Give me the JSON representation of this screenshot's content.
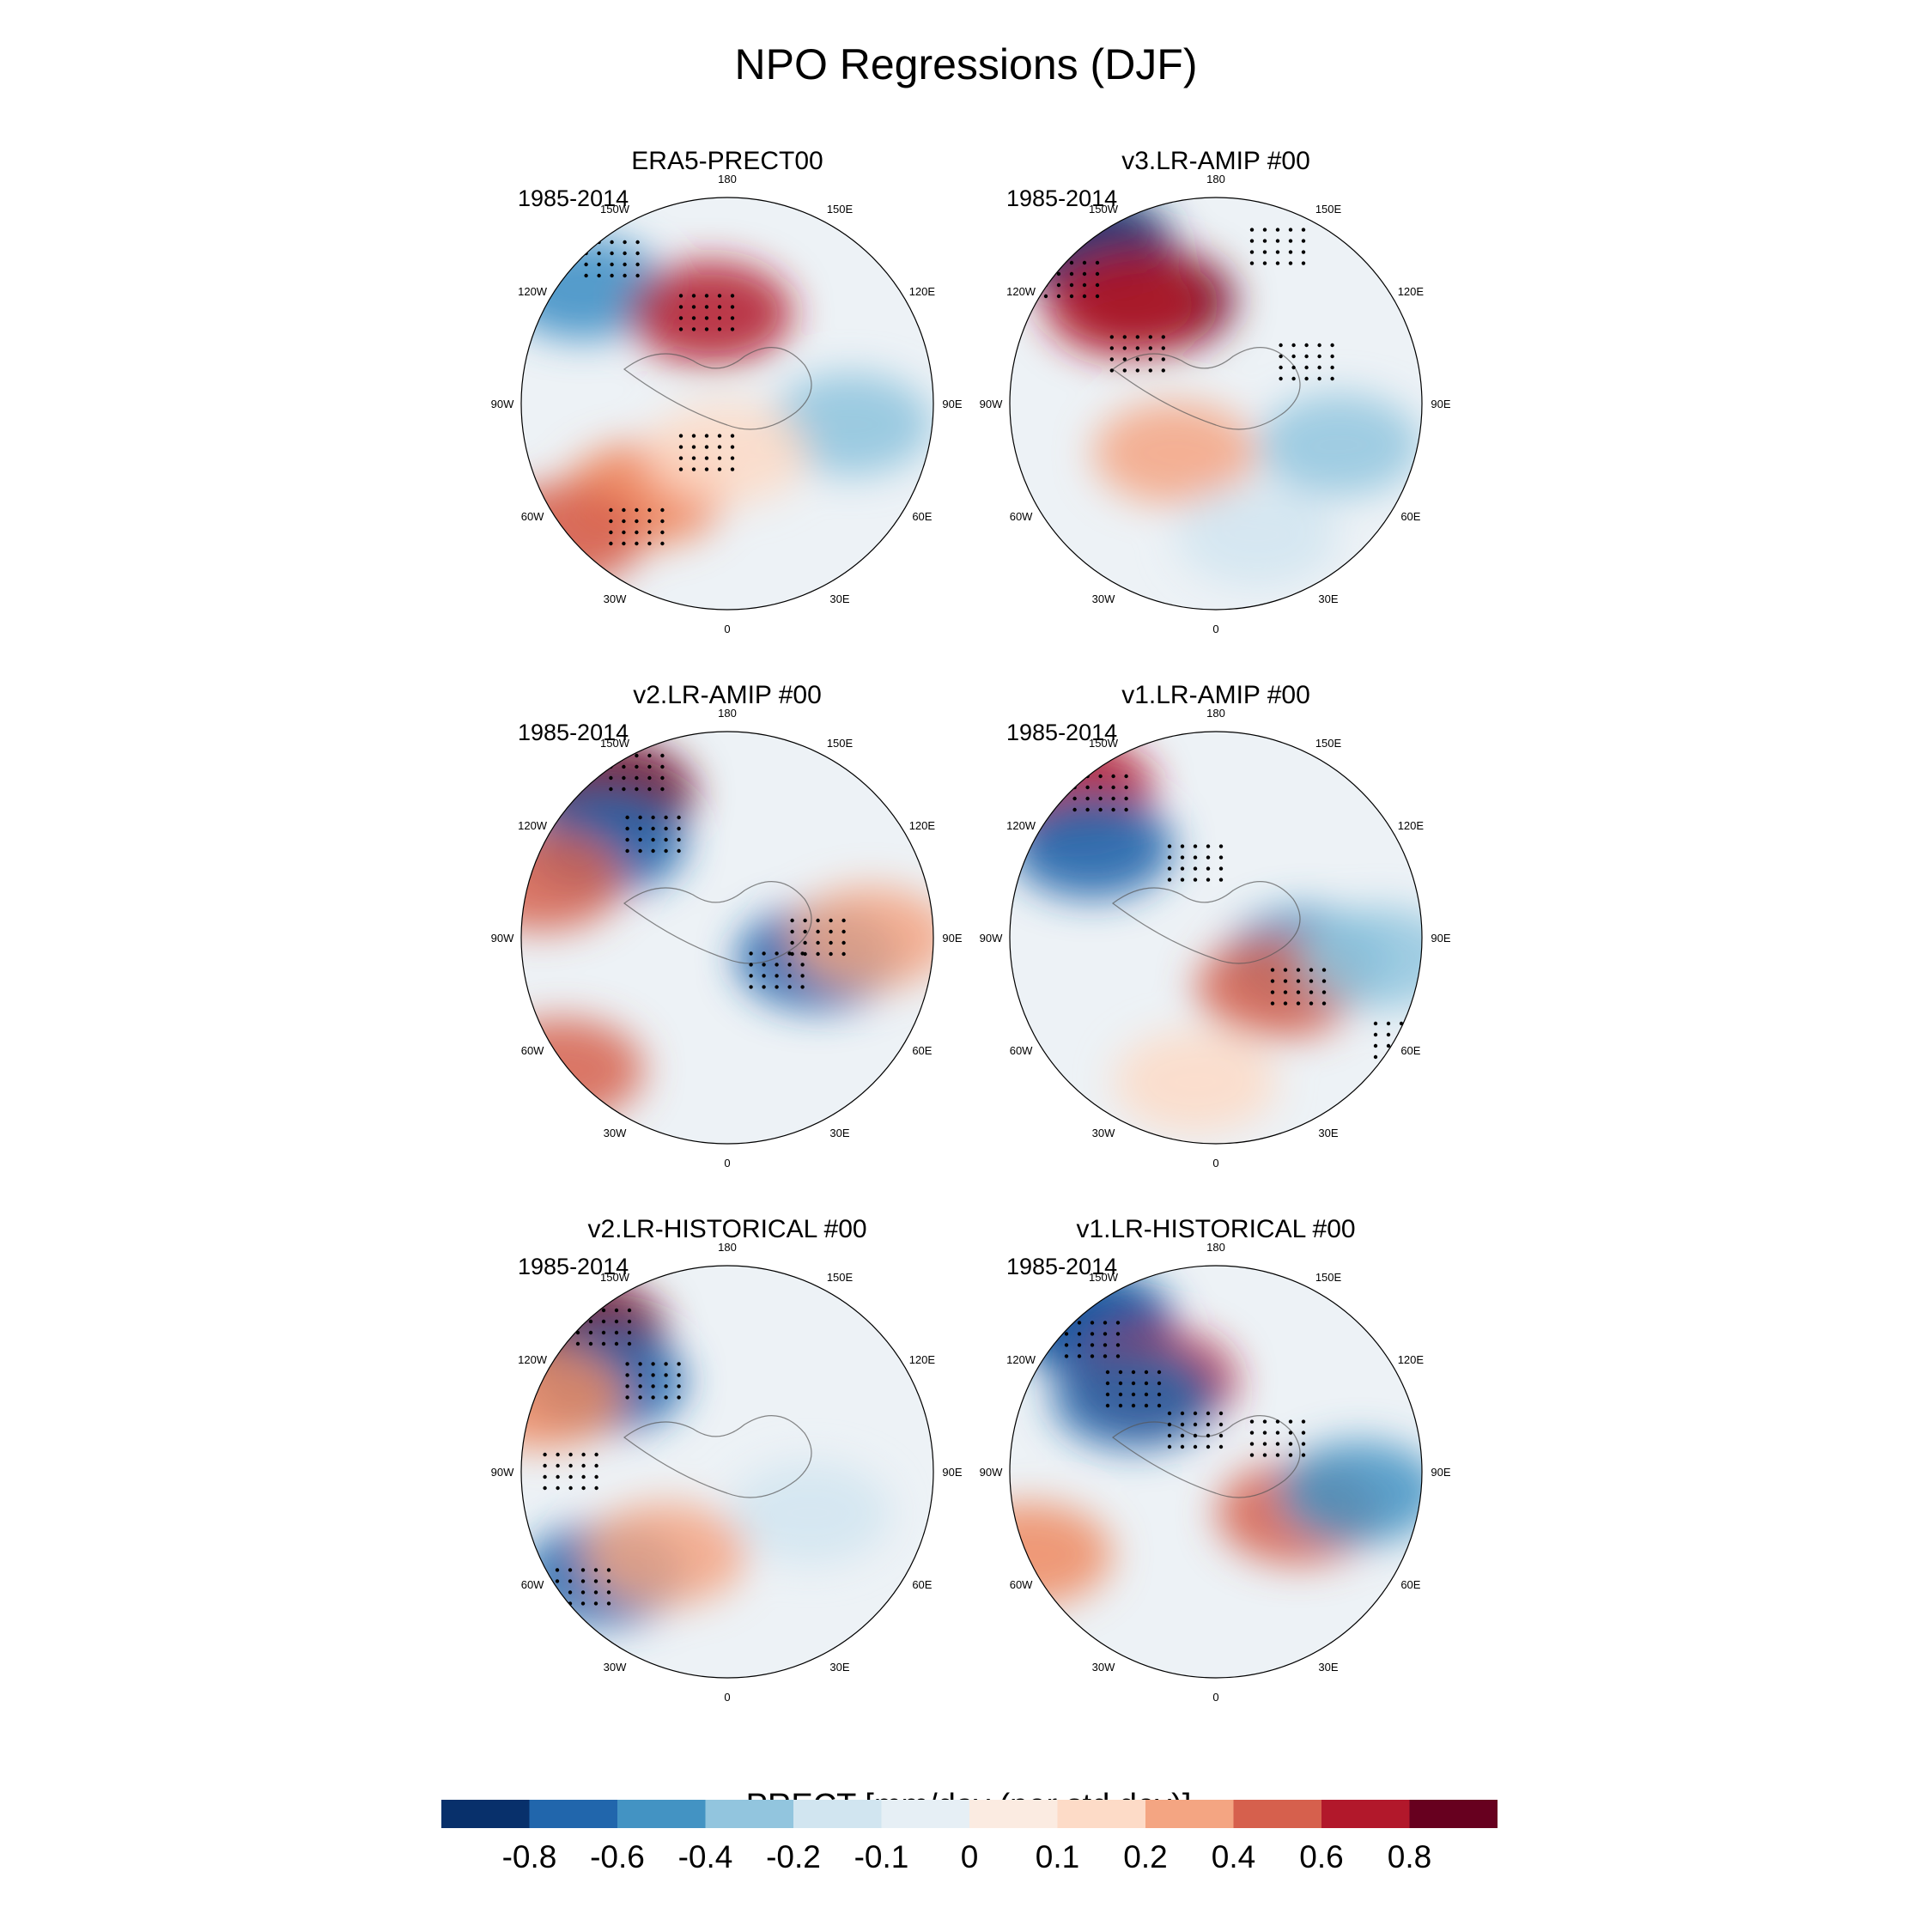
{
  "title": "NPO Regressions (DJF)",
  "panels": [
    {
      "title": "ERA5-PRECT00",
      "period": "1985-2014",
      "blobs": [
        [
          "#4292c6",
          0.15,
          0.22,
          0.55
        ],
        [
          "#b2182b",
          0.46,
          0.28,
          0.5
        ],
        [
          "#ef8a62",
          0.3,
          0.72,
          0.6
        ],
        [
          "#d6604d",
          0.1,
          0.82,
          0.55
        ],
        [
          "#92c5de",
          0.8,
          0.55,
          0.55
        ],
        [
          "#fddbc7",
          0.5,
          0.62,
          0.5
        ]
      ],
      "stipple": [
        [
          0.22,
          0.15,
          0.42
        ],
        [
          0.45,
          0.62,
          0.2
        ],
        [
          0.45,
          0.28,
          0.48
        ],
        [
          0.28,
          0.8,
          0.5
        ]
      ]
    },
    {
      "title": "v3.LR-AMIP  #00",
      "period": "1985-2014",
      "blobs": [
        [
          "#08306b",
          0.2,
          0.12,
          0.6
        ],
        [
          "#67001f",
          0.35,
          0.25,
          0.5
        ],
        [
          "#b2182b",
          0.28,
          0.26,
          0.5
        ],
        [
          "#f4a582",
          0.4,
          0.62,
          0.5
        ],
        [
          "#92c5de",
          0.8,
          0.6,
          0.5
        ],
        [
          "#d1e5f0",
          0.6,
          0.82,
          0.5
        ]
      ],
      "stipple": [
        [
          0.15,
          0.2,
          0.22
        ],
        [
          0.31,
          0.38,
          0.2
        ],
        [
          0.65,
          0.12,
          0.4
        ],
        [
          0.72,
          0.4,
          0.48
        ]
      ]
    },
    {
      "title": "v2.LR-AMIP  #00",
      "period": "1985-2014",
      "blobs": [
        [
          "#67001f",
          0.22,
          0.15,
          0.55
        ],
        [
          "#2166ac",
          0.2,
          0.27,
          0.55
        ],
        [
          "#d6604d",
          0.05,
          0.36,
          0.5
        ],
        [
          "#2166ac",
          0.72,
          0.55,
          0.55
        ],
        [
          "#f4a582",
          0.85,
          0.5,
          0.5
        ],
        [
          "#d6604d",
          0.1,
          0.82,
          0.5
        ]
      ],
      "stipple": [
        [
          0.28,
          0.1,
          0.2
        ],
        [
          0.32,
          0.25,
          0.25
        ],
        [
          0.72,
          0.5,
          0.5
        ],
        [
          0.62,
          0.58,
          0.25
        ]
      ]
    },
    {
      "title": "v1.LR-AMIP  #00",
      "period": "1985-2014",
      "blobs": [
        [
          "#b2182b",
          0.15,
          0.14,
          0.55
        ],
        [
          "#2166ac",
          0.2,
          0.28,
          0.55
        ],
        [
          "#4393c3",
          0.72,
          0.55,
          0.5
        ],
        [
          "#d6604d",
          0.65,
          0.62,
          0.5
        ],
        [
          "#92c5de",
          0.9,
          0.55,
          0.5
        ],
        [
          "#fddbc7",
          0.45,
          0.85,
          0.5
        ]
      ],
      "stipple": [
        [
          0.22,
          0.15,
          0.45
        ],
        [
          0.45,
          0.32,
          0.25
        ],
        [
          0.7,
          0.62,
          0.22
        ],
        [
          0.95,
          0.75,
          0.15
        ]
      ]
    },
    {
      "title": "v2.LR-HISTORICAL  #00",
      "period": "1985-2014",
      "blobs": [
        [
          "#67001f",
          0.15,
          0.16,
          0.55
        ],
        [
          "#2166ac",
          0.2,
          0.28,
          0.55
        ],
        [
          "#ef8a62",
          0.05,
          0.32,
          0.5
        ],
        [
          "#2166ac",
          0.2,
          0.75,
          0.5
        ],
        [
          "#d1e5f0",
          0.7,
          0.6,
          0.5
        ],
        [
          "#f4a582",
          0.35,
          0.7,
          0.5
        ]
      ],
      "stipple": [
        [
          0.2,
          0.15,
          0.5
        ],
        [
          0.32,
          0.28,
          0.25
        ],
        [
          0.12,
          0.5,
          0.2
        ],
        [
          0.15,
          0.78,
          0.25
        ]
      ]
    },
    {
      "title": "v1.LR-HISTORICAL  #00",
      "period": "1985-2014",
      "blobs": [
        [
          "#08519c",
          0.2,
          0.14,
          0.6
        ],
        [
          "#b2182b",
          0.35,
          0.28,
          0.5
        ],
        [
          "#2166ac",
          0.3,
          0.32,
          0.5
        ],
        [
          "#d6604d",
          0.7,
          0.6,
          0.5
        ],
        [
          "#4393c3",
          0.85,
          0.55,
          0.5
        ],
        [
          "#ef8a62",
          0.05,
          0.7,
          0.5
        ]
      ],
      "stipple": [
        [
          0.2,
          0.18,
          0.25
        ],
        [
          0.3,
          0.3,
          0.25
        ],
        [
          0.45,
          0.4,
          0.3
        ],
        [
          0.65,
          0.42,
          0.45
        ]
      ]
    }
  ],
  "longitude_labels": [
    "180",
    "150E",
    "120E",
    "90E",
    "60E",
    "30E",
    "0",
    "30W",
    "60W",
    "90W",
    "120W",
    "150W"
  ],
  "colorbar": {
    "title": "PRECT [mm/day (per std dev)]",
    "colors": [
      "#08306b",
      "#2166ac",
      "#4393c3",
      "#92c5de",
      "#d1e5f0",
      "#e6eff5",
      "#fbebe1",
      "#fddbc7",
      "#f4a582",
      "#d6604d",
      "#b2182b",
      "#67001f"
    ],
    "ticks": [
      "-0.8",
      "-0.6",
      "-0.4",
      "-0.2",
      "-0.1",
      "0",
      "0.1",
      "0.2",
      "0.4",
      "0.6",
      "0.8"
    ]
  }
}
